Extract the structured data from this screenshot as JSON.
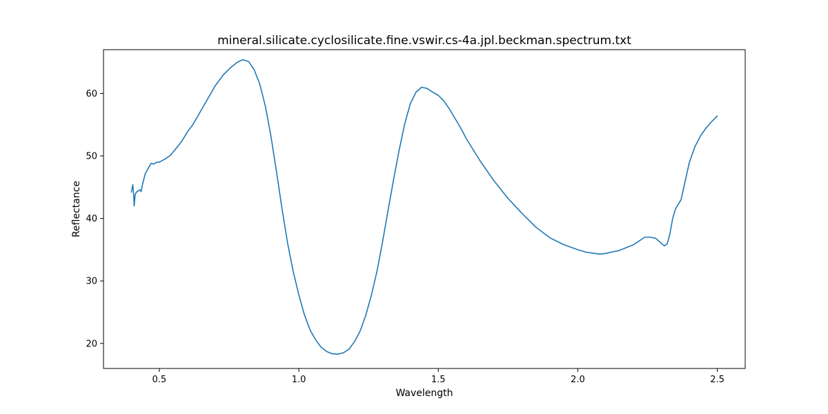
{
  "chart_data": {
    "type": "line",
    "title": "mineral.silicate.cyclosilicate.fine.vswir.cs-4a.jpl.beckman.spectrum.txt",
    "xlabel": "Wavelength",
    "ylabel": "Reflectance",
    "xlim": [
      0.3,
      2.6
    ],
    "ylim": [
      16,
      67
    ],
    "xticks": [
      0.5,
      1.0,
      1.5,
      2.0,
      2.5
    ],
    "xtick_labels": [
      "0.5",
      "1.0",
      "1.5",
      "2.0",
      "2.5"
    ],
    "yticks": [
      20,
      30,
      40,
      50,
      60
    ],
    "ytick_labels": [
      "20",
      "30",
      "40",
      "50",
      "60"
    ],
    "grid": false,
    "line_color": "#1f77b4",
    "series": [
      {
        "x": [
          0.4,
          0.405,
          0.408,
          0.41,
          0.413,
          0.415,
          0.42,
          0.425,
          0.43,
          0.435,
          0.44,
          0.45,
          0.46,
          0.47,
          0.48,
          0.49,
          0.5,
          0.52,
          0.54,
          0.56,
          0.58,
          0.6,
          0.62,
          0.65,
          0.7,
          0.73,
          0.76,
          0.78,
          0.8,
          0.82,
          0.84,
          0.86,
          0.88,
          0.9,
          0.92,
          0.94,
          0.96,
          0.98,
          1.0,
          1.02,
          1.04,
          1.06,
          1.08,
          1.1,
          1.12,
          1.14,
          1.16,
          1.18,
          1.2,
          1.22,
          1.24,
          1.26,
          1.28,
          1.3,
          1.32,
          1.34,
          1.36,
          1.38,
          1.4,
          1.42,
          1.44,
          1.46,
          1.48,
          1.5,
          1.52,
          1.54,
          1.56,
          1.58,
          1.6,
          1.65,
          1.7,
          1.75,
          1.8,
          1.85,
          1.9,
          1.95,
          2.0,
          2.03,
          2.06,
          2.08,
          2.1,
          2.15,
          2.2,
          2.22,
          2.24,
          2.26,
          2.28,
          2.3,
          2.31,
          2.32,
          2.33,
          2.34,
          2.35,
          2.37,
          2.38,
          2.4,
          2.42,
          2.44,
          2.46,
          2.48,
          2.5
        ],
        "y": [
          44.2,
          45.4,
          44.0,
          42.0,
          43.6,
          44.0,
          44.3,
          44.4,
          44.6,
          44.3,
          45.5,
          47.2,
          48.0,
          48.8,
          48.7,
          49.0,
          49.0,
          49.5,
          50.1,
          51.2,
          52.3,
          53.8,
          55.0,
          57.3,
          61.2,
          63.0,
          64.3,
          65.0,
          65.4,
          65.1,
          63.8,
          61.5,
          58.0,
          53.2,
          47.5,
          41.5,
          36.0,
          31.5,
          27.8,
          24.6,
          22.2,
          20.6,
          19.4,
          18.7,
          18.35,
          18.3,
          18.5,
          19.1,
          20.3,
          22.0,
          24.5,
          27.7,
          31.5,
          36.2,
          41.3,
          46.3,
          51.0,
          55.2,
          58.4,
          60.2,
          61.0,
          60.8,
          60.2,
          59.7,
          58.8,
          57.5,
          56.0,
          54.5,
          52.8,
          49.2,
          46.0,
          43.2,
          40.8,
          38.6,
          36.9,
          35.8,
          35.0,
          34.6,
          34.4,
          34.3,
          34.4,
          34.9,
          35.8,
          36.4,
          37.0,
          37.0,
          36.8,
          36.0,
          35.6,
          35.9,
          37.5,
          40.0,
          41.5,
          43.0,
          45.0,
          49.0,
          51.5,
          53.2,
          54.5,
          55.5,
          56.4
        ]
      }
    ]
  }
}
